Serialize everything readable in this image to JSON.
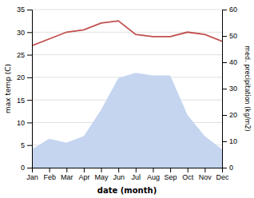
{
  "chart_data": {
    "type": "line",
    "xlabel": "date (month)",
    "ylabel": "max temp (C)",
    "y2label": "med. precipitation (kg/m2)",
    "categories": [
      "Jan",
      "Feb",
      "Mar",
      "Apr",
      "May",
      "Jun",
      "Jul",
      "Aug",
      "Sep",
      "Oct",
      "Nov",
      "Dec"
    ],
    "series": [
      {
        "type": "area",
        "axis": "y2",
        "color": "#c5d5f0",
        "values": [
          7,
          11,
          9.5,
          12,
          22,
          34,
          36,
          35,
          35,
          20,
          12,
          7
        ]
      },
      {
        "type": "line",
        "color": "#c0504d",
        "values": [
          27,
          28.5,
          30.0,
          30.5,
          32.0,
          32.5,
          29.5,
          29.0,
          29.0,
          30.0,
          29.5,
          28.0
        ]
      }
    ],
    "ylim": [
      0,
      35
    ],
    "yticks": [
      0,
      5,
      10,
      15,
      20,
      25,
      30,
      35
    ],
    "y2lim": [
      0,
      60
    ],
    "y2ticks": [
      0,
      10,
      20,
      30,
      40,
      50,
      60
    ],
    "grid": true
  }
}
